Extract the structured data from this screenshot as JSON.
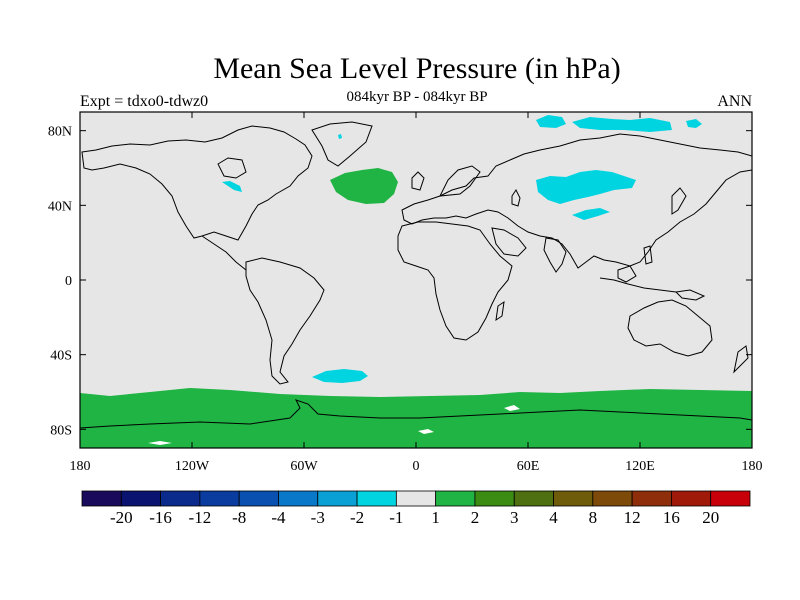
{
  "title": "Mean Sea Level Pressure (in hPa)",
  "subtitle": "084kyr BP - 084kyr BP",
  "left_label": "Expt = tdxo0-tdwz0",
  "right_label": "ANN",
  "colors": {
    "land_ocean_background": "#e6e6e6",
    "coastline": "#000000",
    "positive_anomaly": "#1fb444",
    "negative_anomaly": "#00d4e0"
  },
  "map": {
    "projection": "cylindrical-equidistant",
    "lon_range": [
      -180,
      180
    ],
    "lat_range": [
      -90,
      90
    ],
    "x_ticks": [
      {
        "value": -180,
        "label": "180"
      },
      {
        "value": -120,
        "label": "120W"
      },
      {
        "value": -60,
        "label": "60W"
      },
      {
        "value": 0,
        "label": "0"
      },
      {
        "value": 60,
        "label": "60E"
      },
      {
        "value": 120,
        "label": "120E"
      },
      {
        "value": 180,
        "label": "180"
      }
    ],
    "y_ticks": [
      {
        "value": 80,
        "label": "80N"
      },
      {
        "value": 40,
        "label": "40N"
      },
      {
        "value": 0,
        "label": "0"
      },
      {
        "value": -40,
        "label": "40S"
      },
      {
        "value": -80,
        "label": "80S"
      }
    ]
  },
  "colorbar": {
    "colors": [
      "#1a0a5c",
      "#0a1470",
      "#0a2a8c",
      "#0a3ca0",
      "#0a50b0",
      "#0a78c8",
      "#0aa0d6",
      "#00d4e0",
      "#e6e6e6",
      "#1fb444",
      "#3c8c14",
      "#4e7010",
      "#6e5c0a",
      "#7e4a0a",
      "#8e2e0a",
      "#a01a0a",
      "#c8000a"
    ],
    "labels": [
      "-20",
      "-16",
      "-12",
      "-8",
      "-4",
      "-3",
      "-2",
      "-1",
      "1",
      "2",
      "3",
      "4",
      "8",
      "12",
      "16",
      "20"
    ]
  }
}
